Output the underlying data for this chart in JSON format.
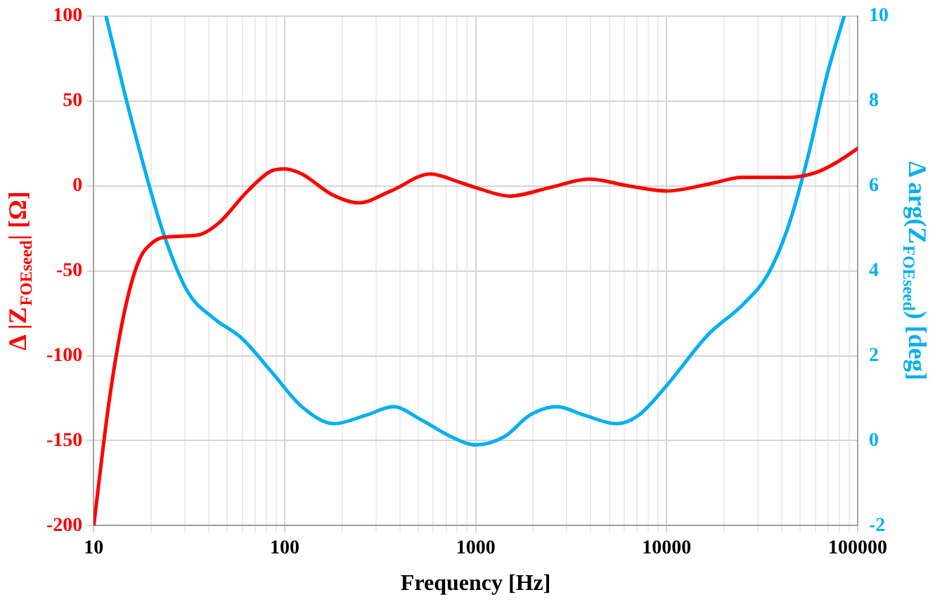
{
  "chart_data": {
    "type": "line",
    "xlabel": "Frequency [Hz]",
    "ylabel": "Δ |Z$_{FOEseed}$| [Ω]",
    "y2label": "Δ arg(Z$_{FOEseed}$) [deg]",
    "log": "x",
    "grid": true,
    "marker": "none",
    "line_style": "solid",
    "xlim": [
      10,
      100000
    ],
    "xticks": [
      10,
      {
        "value": 20,
        "label": null
      },
      {
        "value": 30,
        "label": null
      },
      {
        "value": 40,
        "label": null
      },
      {
        "value": 50,
        "label": null
      },
      {
        "value": 60,
        "label": null
      },
      {
        "value": 70,
        "label": null
      },
      {
        "value": 80,
        "label": null
      },
      {
        "value": 90,
        "label": null
      },
      100,
      {
        "value": 200,
        "label": null
      },
      {
        "value": 300,
        "label": null
      },
      {
        "value": 400,
        "label": null
      },
      {
        "value": 500,
        "label": null
      },
      {
        "value": 600,
        "label": null
      },
      {
        "value": 700,
        "label": null
      },
      {
        "value": 800,
        "label": null
      },
      {
        "value": 900,
        "label": null
      },
      1000,
      {
        "value": 2000,
        "label": null
      },
      {
        "value": 3000,
        "label": null
      },
      {
        "value": 4000,
        "label": null
      },
      {
        "value": 5000,
        "label": null
      },
      {
        "value": 6000,
        "label": null
      },
      {
        "value": 7000,
        "label": null
      },
      {
        "value": 8000,
        "label": null
      },
      {
        "value": 9000,
        "label": null
      },
      10000,
      {
        "value": 20000,
        "label": null
      },
      {
        "value": 30000,
        "label": null
      },
      {
        "value": 40000,
        "label": null
      },
      {
        "value": 50000,
        "label": null
      },
      {
        "value": 60000,
        "label": null
      },
      {
        "value": 70000,
        "label": null
      },
      {
        "value": 80000,
        "label": null
      },
      {
        "value": 90000,
        "label": null
      },
      100000
    ],
    "ylim": [
      -200,
      100
    ],
    "yticks": [
      -200,
      -150,
      -100,
      -50,
      0,
      50,
      100
    ],
    "y2lim": [
      -2,
      10
    ],
    "y2ticks": [
      -2,
      0,
      2,
      4,
      6,
      8,
      10
    ],
    "series": [
      {
        "color": "#ff0000",
        "x": [
          10,
          12,
          14.3,
          17.1,
          20.5,
          24.5,
          35,
          45,
          64,
          86,
          100,
          123,
          176,
          244,
          360,
          580,
          830,
          1000,
          1510,
          2440,
          3930,
          6330,
          10000,
          16500,
          25000,
          43000,
          61000,
          78000,
          100000
        ],
        "values": [
          -200,
          -128,
          -77,
          -45,
          -33,
          -30,
          -29,
          -22,
          -3,
          9,
          10,
          7,
          -5,
          -10,
          -3,
          7,
          2,
          -1,
          -6,
          -1,
          4,
          0,
          -3,
          1,
          5,
          5,
          8,
          14,
          22
        ]
      },
      {
        "color": "#00b0f0",
        "axis": "y2",
        "x": [
          11.6,
          14.3,
          18.2,
          23.1,
          31.1,
          42,
          60,
          86,
          123,
          181,
          267,
          371,
          515,
          738,
          1000,
          1420,
          1920,
          2660,
          3700,
          5460,
          7130,
          10000,
          16500,
          25000,
          33700,
          43000,
          54300,
          69000,
          85000
        ],
        "values": [
          10,
          8.3,
          6.5,
          4.9,
          3.5,
          2.9,
          2.4,
          1.6,
          0.8,
          0.4,
          0.6,
          0.8,
          0.5,
          0.1,
          -0.1,
          0.1,
          0.6,
          0.8,
          0.6,
          0.4,
          0.6,
          1.3,
          2.5,
          3.2,
          3.9,
          5.0,
          6.6,
          8.6,
          10
        ]
      }
    ]
  }
}
